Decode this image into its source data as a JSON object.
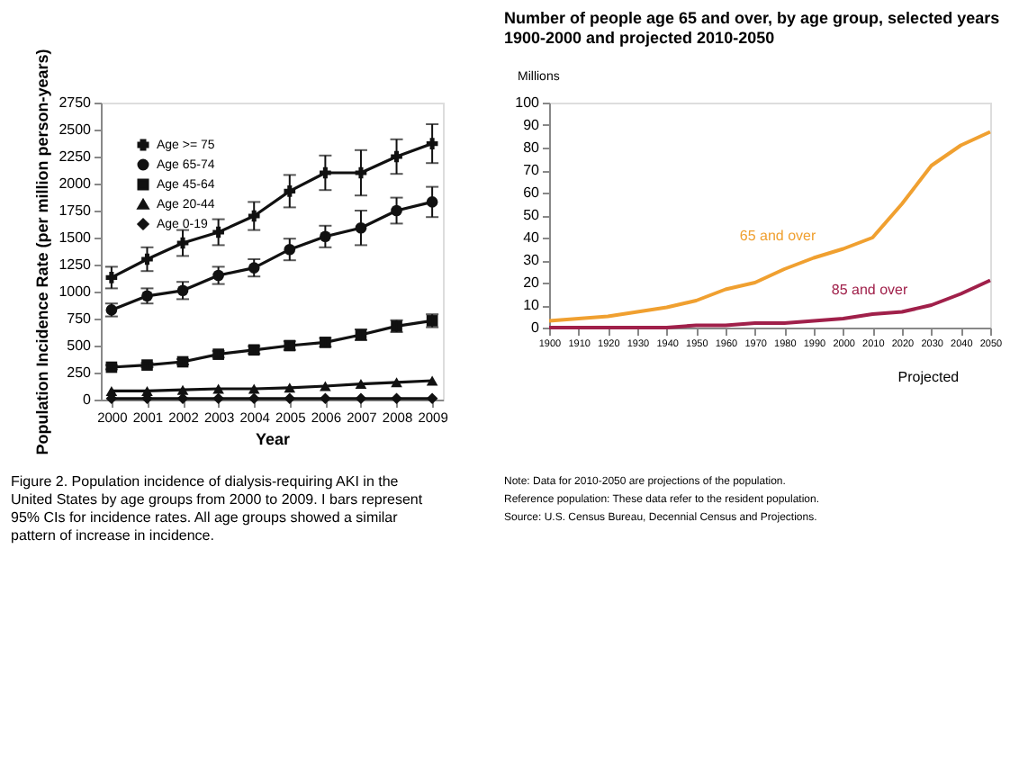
{
  "chart_data": [
    {
      "type": "line",
      "title": "Number of people age 65 and over, by age group, selected years 1900-2000 and projected 2010-2050",
      "ylabel": "Millions",
      "x": [
        1900,
        1910,
        1920,
        1930,
        1940,
        1950,
        1960,
        1970,
        1980,
        1990,
        2000,
        2010,
        2020,
        2030,
        2040,
        2050
      ],
      "series": [
        {
          "name": "65 and over",
          "color": "#f0a030",
          "values": [
            3,
            4,
            5,
            7,
            9,
            12,
            17,
            20,
            26,
            31,
            35,
            40,
            55,
            72,
            81,
            87
          ]
        },
        {
          "name": "85 and over",
          "color": "#a0204a",
          "values": [
            0,
            0,
            0,
            0,
            0,
            1,
            1,
            2,
            2,
            3,
            4,
            6,
            7,
            10,
            15,
            21
          ]
        }
      ],
      "xlim": [
        1900,
        2050
      ],
      "xticks": [
        1900,
        1910,
        1920,
        1930,
        1940,
        1950,
        1960,
        1970,
        1980,
        1990,
        2000,
        2010,
        2020,
        2030,
        2040,
        2050
      ],
      "ylim": [
        0,
        100
      ],
      "yticks": [
        0,
        10,
        20,
        30,
        40,
        50,
        60,
        70,
        80,
        90,
        100
      ],
      "grid": false,
      "legend": false,
      "annotations": [
        "Projected",
        "Note: Data for 2010-2050 are projections of the population.",
        "Reference population: These data refer to the resident population.",
        "Source: U.S. Census Bureau, Decennial Census and Projections."
      ]
    },
    {
      "type": "line",
      "xlabel": "Year",
      "ylabel": "Population Incidence Rate (per million person-years)",
      "x": [
        2000,
        2001,
        2002,
        2003,
        2004,
        2005,
        2006,
        2007,
        2008,
        2009
      ],
      "series": [
        {
          "name": "Age >= 75",
          "color": "#111111",
          "marker": "cross",
          "values": [
            1130,
            1300,
            1450,
            1550,
            1700,
            1930,
            2100,
            2100,
            2250,
            2370
          ],
          "errors": [
            100,
            110,
            120,
            120,
            130,
            150,
            160,
            210,
            160,
            180
          ]
        },
        {
          "name": "Age 65-74",
          "color": "#111111",
          "marker": "circle",
          "values": [
            830,
            960,
            1010,
            1150,
            1220,
            1390,
            1510,
            1590,
            1750,
            1830
          ],
          "errors": [
            60,
            70,
            80,
            80,
            80,
            100,
            100,
            160,
            120,
            140
          ]
        },
        {
          "name": "Age 45-64",
          "color": "#111111",
          "marker": "square",
          "values": [
            300,
            320,
            350,
            420,
            460,
            500,
            530,
            600,
            680,
            730
          ],
          "errors": [
            20,
            20,
            25,
            30,
            35,
            40,
            40,
            50,
            55,
            60
          ]
        },
        {
          "name": "Age 20-44",
          "color": "#111111",
          "marker": "triangle",
          "values": [
            80,
            80,
            90,
            100,
            100,
            110,
            125,
            145,
            160,
            175
          ]
        },
        {
          "name": "Age 0-19",
          "color": "#111111",
          "marker": "diamond",
          "values": [
            10,
            10,
            10,
            10,
            10,
            10,
            10,
            10,
            10,
            10
          ]
        }
      ],
      "xlim": [
        1999.7,
        2009.3
      ],
      "xticks": [
        2000,
        2001,
        2002,
        2003,
        2004,
        2005,
        2006,
        2007,
        2008,
        2009
      ],
      "ylim": [
        0,
        2750
      ],
      "yticks": [
        0,
        250,
        500,
        750,
        1000,
        1250,
        1500,
        1750,
        2000,
        2250,
        2500,
        2750
      ],
      "grid": false,
      "legend": "top left",
      "annotations": [
        "Figure 2. Population incidence of dialysis-requiring AKI in the United States by age groups from 2000 to 2009. I bars represent 95% CIs for incidence rates. All age groups showed a similar pattern of increase in incidence."
      ]
    }
  ]
}
